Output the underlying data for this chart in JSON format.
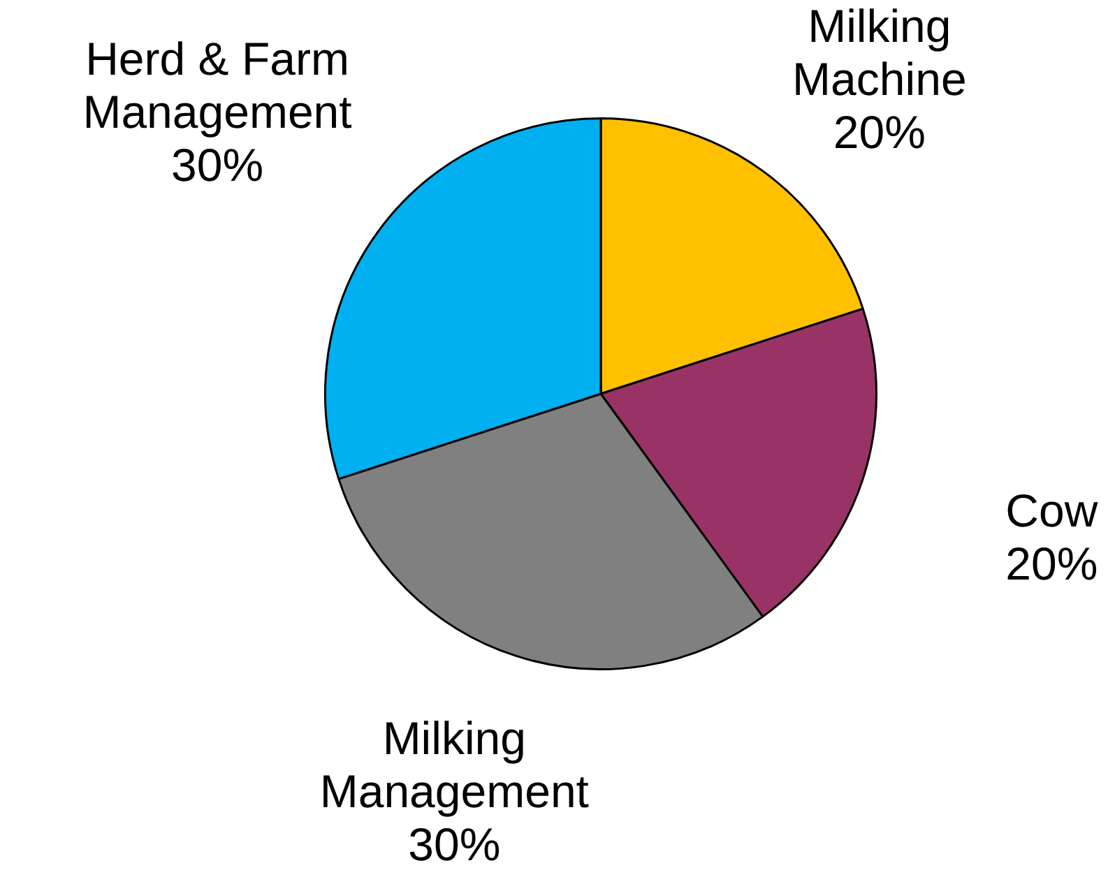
{
  "chart_data": {
    "type": "pie",
    "categories": [
      "Milking Machine",
      "Cow",
      "Milking Management",
      "Herd & Farm Management"
    ],
    "values": [
      20,
      20,
      30,
      30
    ],
    "colors": [
      "#ffc000",
      "#993366",
      "#808080",
      "#00b0f0"
    ],
    "value_labels": [
      "20%",
      "20%",
      "30%",
      "30%"
    ],
    "legend": false
  }
}
